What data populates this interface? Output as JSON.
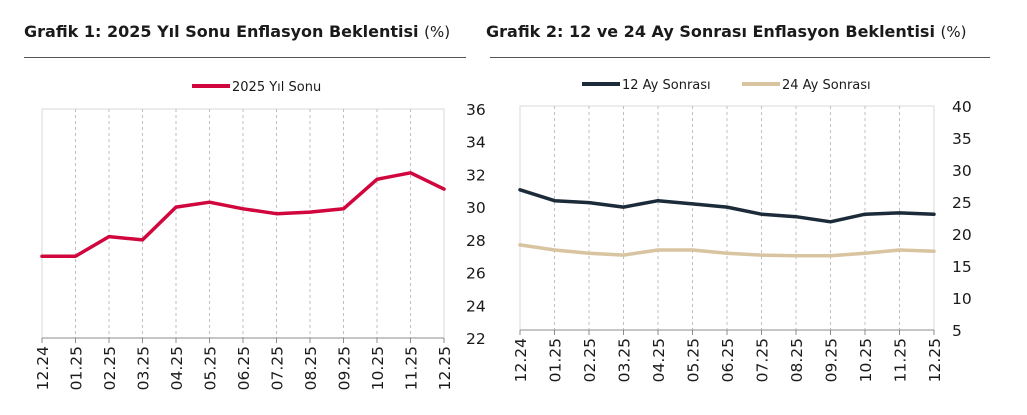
{
  "chart_data": [
    {
      "type": "line",
      "title": "Grafik 1: 2025 Yıl Sonu Enflasyon Beklentisi",
      "unit": "(%)",
      "xlabel": "",
      "ylabel": "",
      "x": [
        "12.24",
        "01.25",
        "02.25",
        "03.25",
        "04.25",
        "05.25",
        "06.25",
        "07.25",
        "08.25",
        "09.25",
        "10.25",
        "11.25",
        "12.25"
      ],
      "series": [
        {
          "name": "2025 Yıl Sonu",
          "color": "#d0063d",
          "values": [
            27.0,
            27.0,
            28.2,
            28.0,
            30.0,
            30.3,
            29.9,
            29.6,
            29.7,
            29.9,
            31.7,
            32.1,
            31.1
          ]
        }
      ],
      "ylim": [
        22,
        36
      ],
      "yticks": [
        22,
        24,
        26,
        28,
        30,
        32,
        34,
        36
      ],
      "yaxis_position": "right",
      "grid": "vertical dashed",
      "legend_position": "top"
    },
    {
      "type": "line",
      "title": "Grafik 2: 12 ve 24 Ay Sonrası Enflasyon Beklentisi",
      "unit": "(%)",
      "xlabel": "",
      "ylabel": "",
      "x": [
        "12.24",
        "01.25",
        "02.25",
        "03.25",
        "04.25",
        "05.25",
        "06.25",
        "07.25",
        "08.25",
        "09.25",
        "10.25",
        "11.25",
        "12.25"
      ],
      "series": [
        {
          "name": "12 Ay Sonrası",
          "color": "#1c2b3a",
          "values": [
            26.9,
            25.2,
            24.9,
            24.2,
            25.2,
            24.7,
            24.2,
            23.1,
            22.7,
            21.9,
            23.1,
            23.3,
            23.1
          ]
        },
        {
          "name": "24 Ay Sonrası",
          "color": "#d8c4a0",
          "values": [
            18.3,
            17.5,
            17.0,
            16.7,
            17.5,
            17.5,
            17.0,
            16.7,
            16.6,
            16.6,
            17.0,
            17.5,
            17.3
          ]
        }
      ],
      "ylim": [
        5,
        40
      ],
      "yticks": [
        5,
        10,
        15,
        20,
        25,
        30,
        35,
        40
      ],
      "yaxis_position": "right",
      "grid": "vertical dashed",
      "legend_position": "top"
    }
  ],
  "panels": {
    "left": {
      "title": "Grafik 1: 2025 Yıl Sonu Enflasyon Beklentisi",
      "unit": "(%)",
      "legend": [
        "2025 Yıl Sonu"
      ]
    },
    "right": {
      "title": "Grafik 2: 12 ve 24 Ay Sonrası Enflasyon Beklentisi",
      "unit": "(%)",
      "legend": [
        "12 Ay Sonrası",
        "24 Ay Sonrası"
      ]
    }
  }
}
